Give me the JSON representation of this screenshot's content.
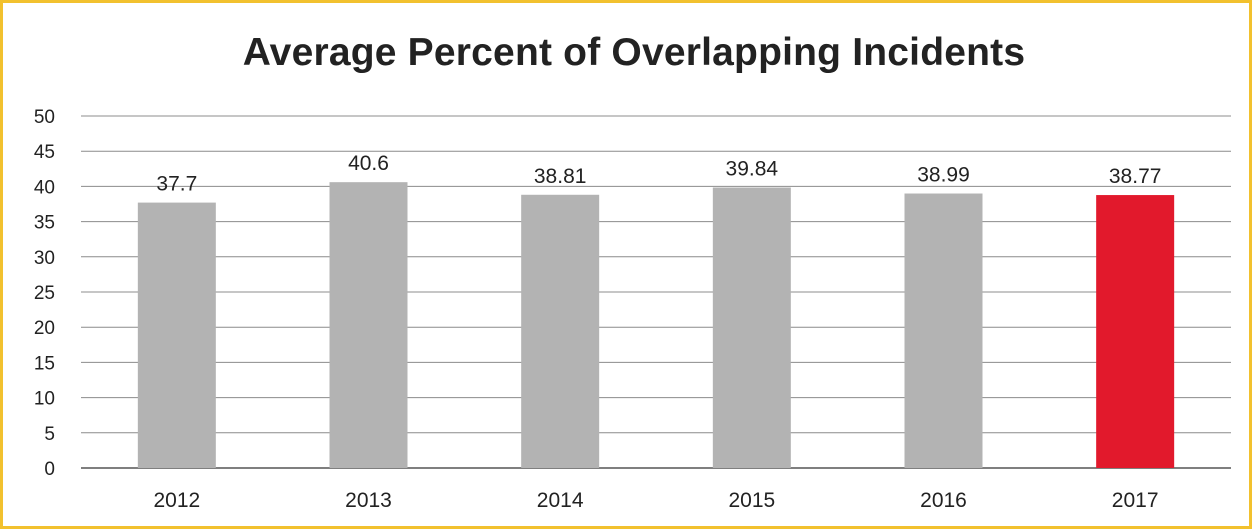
{
  "chart_data": {
    "type": "bar",
    "title": "Average Percent of Overlapping Incidents",
    "xlabel": "",
    "ylabel": "",
    "categories": [
      "2012",
      "2013",
      "2014",
      "2015",
      "2016",
      "2017"
    ],
    "values": [
      37.7,
      40.6,
      38.81,
      39.84,
      38.99,
      38.77
    ],
    "data_labels": [
      "37.7",
      "40.6",
      "38.81",
      "39.84",
      "38.99",
      "38.77"
    ],
    "ylim": [
      0,
      50
    ],
    "yticks": [
      0,
      5,
      10,
      15,
      20,
      25,
      30,
      35,
      40,
      45,
      50
    ],
    "grid": true,
    "legend": "none",
    "colors": {
      "default_bar": "#b3b3b3",
      "highlight_bar": "#e2192c",
      "highlight_category": "2017",
      "grid": "#8c8c8c",
      "border": "#f2c12e"
    }
  }
}
